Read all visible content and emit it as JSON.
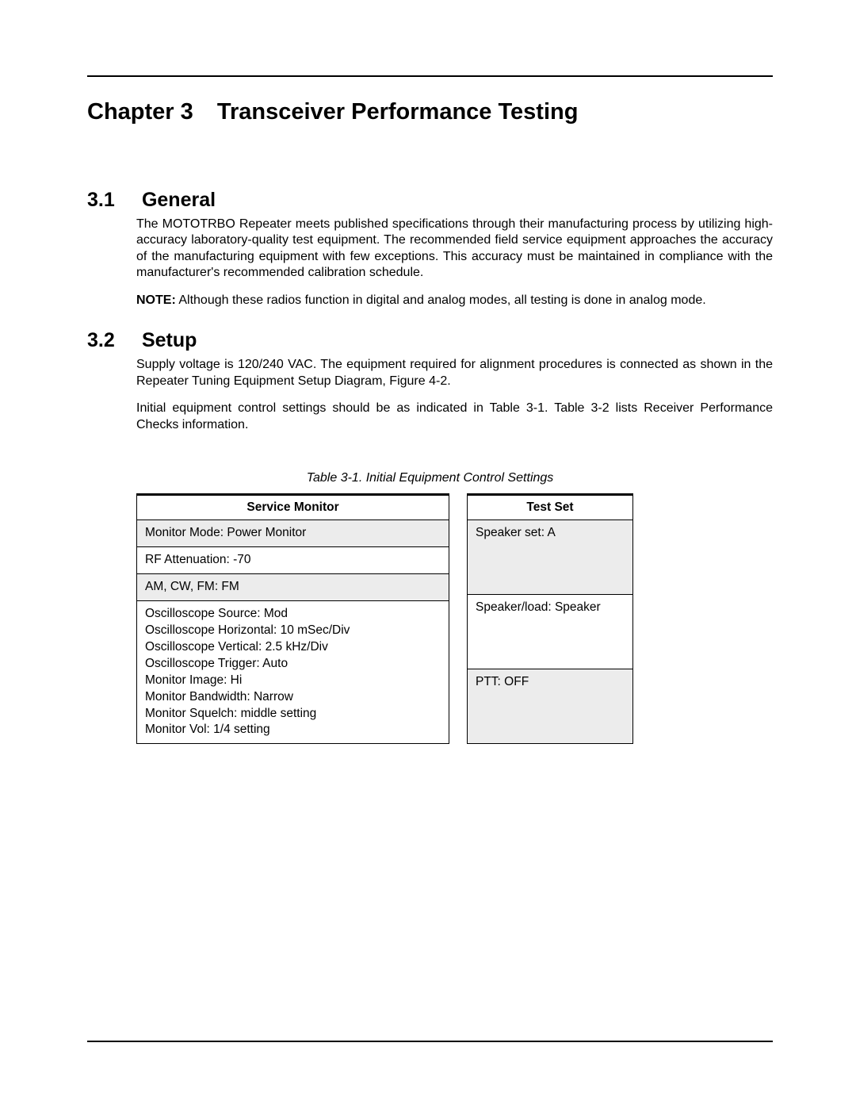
{
  "chapter": {
    "number": "Chapter 3",
    "title": "Transceiver Performance Testing"
  },
  "sections": [
    {
      "num": "3.1",
      "title": "General",
      "paragraphs": [
        "The MOTOTRBO Repeater meets published specifications through their manufacturing process by utilizing high-accuracy laboratory-quality test equipment. The recommended field service equipment approaches the accuracy of the manufacturing equipment with few exceptions. This accuracy must be maintained in compliance with the manufacturer's recommended calibration schedule."
      ],
      "note_label": "NOTE:",
      "note_text": "Although these radios function in digital and analog modes, all testing is done in analog mode."
    },
    {
      "num": "3.2",
      "title": "Setup",
      "paragraphs": [
        "Supply voltage is 120/240 VAC. The equipment required for alignment procedures is connected as shown in the Repeater Tuning Equipment Setup Diagram, Figure 4-2.",
        "Initial equipment control settings should be as indicated in Table 3-1. Table 3-2 lists Receiver Performance Checks information."
      ]
    }
  ],
  "table": {
    "caption": "Table 3-1.  Initial Equipment Control Settings",
    "left": {
      "header": "Service Monitor",
      "rows": [
        {
          "text": "Monitor Mode: Power Monitor",
          "shade": true
        },
        {
          "text": "RF Attenuation: -70",
          "shade": false
        },
        {
          "text": "AM, CW, FM: FM",
          "shade": true
        },
        {
          "text": "Oscilloscope Source: Mod\nOscilloscope Horizontal: 10 mSec/Div\nOscilloscope Vertical: 2.5 kHz/Div\nOscilloscope Trigger: Auto\nMonitor Image: Hi\nMonitor Bandwidth: Narrow\nMonitor Squelch: middle setting\nMonitor Vol: 1/4 setting",
          "shade": false
        }
      ]
    },
    "right": {
      "header": "Test Set",
      "rows": [
        {
          "text": "Speaker set: A",
          "shade": true
        },
        {
          "text": "Speaker/load: Speaker",
          "shade": false
        },
        {
          "text": "PTT: OFF",
          "shade": true
        }
      ]
    }
  }
}
